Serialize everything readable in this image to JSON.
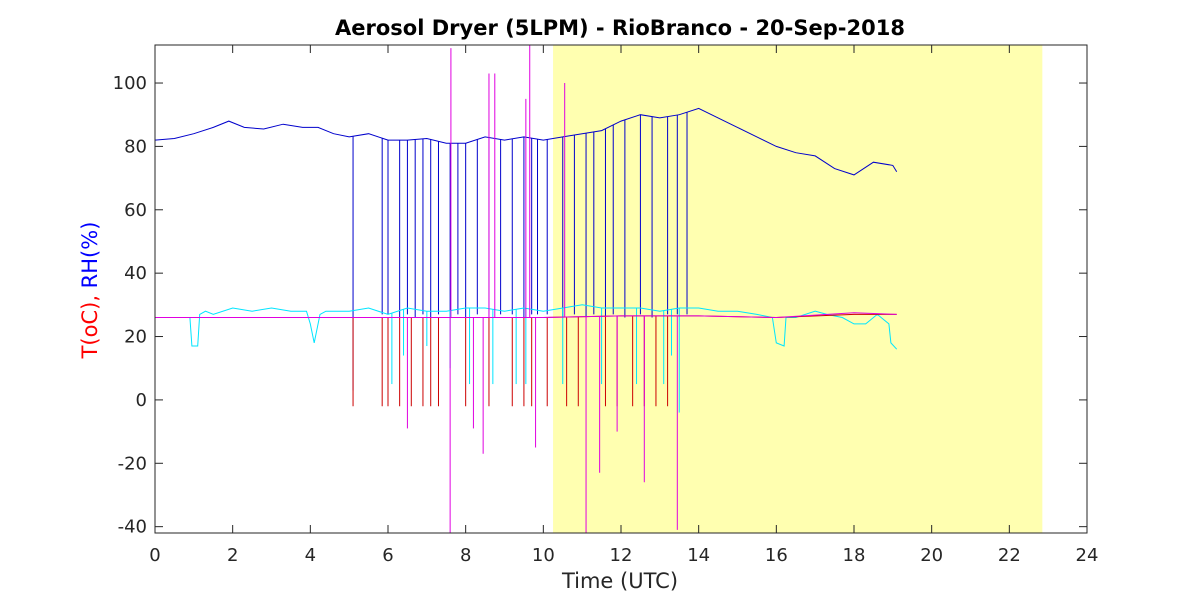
{
  "chart_data": {
    "type": "line",
    "title": "Aerosol Dryer (5LPM) - RioBranco - 20-Sep-2018",
    "xlabel": "Time (UTC)",
    "ylabel_parts": [
      {
        "text": "T(oC), ",
        "color": "#ff0000"
      },
      {
        "text": "RH(%)",
        "color": "#0000ff"
      }
    ],
    "xlim": [
      0,
      24
    ],
    "ylim": [
      -42,
      112
    ],
    "xticks": [
      0,
      2,
      4,
      6,
      8,
      10,
      12,
      14,
      16,
      18,
      20,
      22,
      24
    ],
    "yticks": [
      -40,
      -20,
      0,
      20,
      40,
      60,
      80,
      100
    ],
    "grid": false,
    "night_shading": {
      "x_start": 10.25,
      "x_end": 22.85,
      "color": "#ffffb0"
    },
    "series": [
      {
        "color": "#0000cc",
        "x": [
          0,
          0.5,
          1,
          1.5,
          1.9,
          2.3,
          2.8,
          3.3,
          3.8,
          4.2,
          4.6,
          5,
          5.5,
          6,
          6.5,
          7,
          7.5,
          8,
          8.5,
          9,
          9.5,
          10,
          10.5,
          11,
          11.5,
          12,
          12.5,
          13,
          13.5,
          14,
          14.5,
          15,
          15.5,
          16,
          16.5,
          17,
          17.5,
          18,
          18.5,
          19,
          19.1
        ],
        "y": [
          82,
          82.5,
          84,
          86,
          88,
          86,
          85.5,
          87,
          86,
          86,
          84,
          83,
          84,
          82,
          82,
          82.5,
          81,
          81,
          83,
          82,
          83,
          82,
          83,
          84,
          85,
          88,
          90,
          89,
          90,
          92,
          89,
          86,
          83,
          80,
          78,
          77,
          73,
          71,
          75,
          74,
          72
        ],
        "spikes": [
          {
            "x": 5.1,
            "y": 3
          },
          {
            "x": 5.85,
            "y": 27
          },
          {
            "x": 6.0,
            "y": 27
          },
          {
            "x": 6.3,
            "y": 26
          },
          {
            "x": 6.5,
            "y": 27
          },
          {
            "x": 6.7,
            "y": 26
          },
          {
            "x": 6.9,
            "y": 27
          },
          {
            "x": 7.1,
            "y": 26
          },
          {
            "x": 7.3,
            "y": 27
          },
          {
            "x": 7.6,
            "y": 26
          },
          {
            "x": 7.8,
            "y": 27
          },
          {
            "x": 8.0,
            "y": 26
          },
          {
            "x": 8.3,
            "y": 27
          },
          {
            "x": 8.6,
            "y": 26
          },
          {
            "x": 8.9,
            "y": 27
          },
          {
            "x": 9.2,
            "y": 27
          },
          {
            "x": 9.5,
            "y": 26
          },
          {
            "x": 9.7,
            "y": 27
          },
          {
            "x": 9.85,
            "y": 27
          },
          {
            "x": 10.1,
            "y": 27
          },
          {
            "x": 10.5,
            "y": 26
          },
          {
            "x": 10.8,
            "y": 27
          },
          {
            "x": 11.1,
            "y": 26
          },
          {
            "x": 11.3,
            "y": 27
          },
          {
            "x": 11.6,
            "y": 26
          },
          {
            "x": 11.8,
            "y": 27
          },
          {
            "x": 12.1,
            "y": 26
          },
          {
            "x": 12.5,
            "y": 27
          },
          {
            "x": 12.8,
            "y": 26
          },
          {
            "x": 13.2,
            "y": 27
          },
          {
            "x": 13.45,
            "y": 27
          },
          {
            "x": 13.7,
            "y": 27
          }
        ]
      },
      {
        "color": "#00e5ff",
        "x": [
          0,
          0.9,
          0.95,
          1.1,
          1.15,
          1.3,
          1.5,
          2,
          2.5,
          3,
          3.5,
          3.9,
          4.0,
          4.1,
          4.25,
          4.4,
          5,
          5.5,
          6,
          6.5,
          7,
          7.5,
          8,
          8.5,
          9,
          9.5,
          10,
          10.5,
          11,
          11.5,
          12,
          12.5,
          13,
          13.5,
          14,
          14.5,
          15,
          15.5,
          15.9,
          16.0,
          16.2,
          16.25,
          16.5,
          17,
          17.3,
          17.7,
          18,
          18.3,
          18.6,
          18.9,
          18.95,
          19.1
        ],
        "y": [
          26,
          26,
          17,
          17,
          27,
          28,
          27,
          29,
          28,
          29,
          28,
          28,
          24,
          18,
          27,
          28,
          28,
          29,
          27,
          29,
          28,
          28,
          29,
          29,
          28,
          29,
          28,
          29,
          30,
          29,
          29,
          29,
          28,
          29,
          29,
          28,
          28,
          27,
          26,
          18,
          17,
          26,
          26,
          28,
          27,
          26,
          24,
          24,
          27,
          24,
          18,
          16
        ],
        "spikes": [
          {
            "x": 6.1,
            "y": 5
          },
          {
            "x": 6.4,
            "y": 14
          },
          {
            "x": 7.0,
            "y": 17
          },
          {
            "x": 7.6,
            "y": 10
          },
          {
            "x": 8.1,
            "y": 5
          },
          {
            "x": 8.7,
            "y": 5
          },
          {
            "x": 9.3,
            "y": 5
          },
          {
            "x": 9.55,
            "y": 5
          },
          {
            "x": 10.5,
            "y": 5
          },
          {
            "x": 11.5,
            "y": 5
          },
          {
            "x": 12.4,
            "y": 5
          },
          {
            "x": 13.1,
            "y": 5
          },
          {
            "x": 13.5,
            "y": -4
          },
          {
            "x": 13.3,
            "y": 14
          }
        ]
      },
      {
        "color": "#cc0000",
        "x": [
          0,
          4,
          8,
          10,
          12,
          14,
          16,
          18,
          19.1
        ],
        "y": [
          26,
          26,
          26,
          26,
          26.5,
          26.5,
          26,
          27,
          27
        ],
        "spikes": [
          {
            "x": 5.1,
            "y": -2
          },
          {
            "x": 5.85,
            "y": -2
          },
          {
            "x": 6.0,
            "y": -2
          },
          {
            "x": 6.3,
            "y": -2
          },
          {
            "x": 6.6,
            "y": -2
          },
          {
            "x": 6.9,
            "y": -2
          },
          {
            "x": 7.1,
            "y": -2
          },
          {
            "x": 7.3,
            "y": -2
          },
          {
            "x": 8.0,
            "y": -2
          },
          {
            "x": 8.6,
            "y": -2
          },
          {
            "x": 9.2,
            "y": -2
          },
          {
            "x": 9.5,
            "y": -2
          },
          {
            "x": 9.7,
            "y": -2
          },
          {
            "x": 10.1,
            "y": -2
          },
          {
            "x": 10.6,
            "y": -2
          },
          {
            "x": 10.9,
            "y": -2
          },
          {
            "x": 11.6,
            "y": -2
          },
          {
            "x": 11.9,
            "y": -2
          },
          {
            "x": 12.3,
            "y": -2
          },
          {
            "x": 12.6,
            "y": -2
          },
          {
            "x": 12.9,
            "y": -2
          },
          {
            "x": 13.2,
            "y": -2
          }
        ]
      },
      {
        "color": "#e000e0",
        "x": [
          0,
          4,
          8,
          10,
          12,
          14,
          16,
          18,
          19.1
        ],
        "y": [
          26,
          26,
          26,
          26,
          26.5,
          26.5,
          26,
          27.5,
          27
        ],
        "spikes": [
          {
            "x": 6.5,
            "y": -9
          },
          {
            "x": 7.6,
            "y": -42
          },
          {
            "x": 7.62,
            "y": 111
          },
          {
            "x": 8.2,
            "y": -9
          },
          {
            "x": 8.45,
            "y": -17
          },
          {
            "x": 8.6,
            "y": 103
          },
          {
            "x": 8.75,
            "y": 103
          },
          {
            "x": 9.55,
            "y": 95
          },
          {
            "x": 9.65,
            "y": 112
          },
          {
            "x": 9.8,
            "y": -15
          },
          {
            "x": 10.55,
            "y": 100
          },
          {
            "x": 11.1,
            "y": -42
          },
          {
            "x": 11.45,
            "y": -23
          },
          {
            "x": 11.9,
            "y": -10
          },
          {
            "x": 12.6,
            "y": -26
          },
          {
            "x": 13.45,
            "y": -41
          }
        ]
      }
    ]
  }
}
